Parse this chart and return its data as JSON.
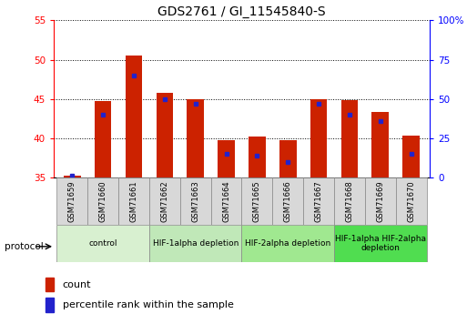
{
  "title": "GDS2761 / GI_11545840-S",
  "samples": [
    "GSM71659",
    "GSM71660",
    "GSM71661",
    "GSM71662",
    "GSM71663",
    "GSM71664",
    "GSM71665",
    "GSM71666",
    "GSM71667",
    "GSM71668",
    "GSM71669",
    "GSM71670"
  ],
  "count_values": [
    35.2,
    44.7,
    50.5,
    45.8,
    45.0,
    39.7,
    40.2,
    39.7,
    45.0,
    44.8,
    43.3,
    40.3
  ],
  "percentile_values": [
    1.0,
    40.0,
    65.0,
    50.0,
    47.0,
    15.0,
    14.0,
    10.0,
    47.0,
    40.0,
    36.0,
    15.0
  ],
  "bar_bottom": 35.0,
  "bar_color": "#cc2200",
  "percentile_color": "#2222cc",
  "ylim_left": [
    35,
    55
  ],
  "ylim_right": [
    0,
    100
  ],
  "yticks_left": [
    35,
    40,
    45,
    50,
    55
  ],
  "yticks_right": [
    0,
    25,
    50,
    75,
    100
  ],
  "ytick_labels_right": [
    "0",
    "25",
    "50",
    "75",
    "100%"
  ],
  "groups": [
    {
      "label": "control",
      "start": 0,
      "end": 3,
      "color": "#d8f0d0"
    },
    {
      "label": "HIF-1alpha depletion",
      "start": 3,
      "end": 6,
      "color": "#c0e8b8"
    },
    {
      "label": "HIF-2alpha depletion",
      "start": 6,
      "end": 9,
      "color": "#a0e890"
    },
    {
      "label": "HIF-1alpha HIF-2alpha\ndepletion",
      "start": 9,
      "end": 12,
      "color": "#50dd50"
    }
  ],
  "legend_count_label": "count",
  "legend_percentile_label": "percentile rank within the sample",
  "xlabel_protocol": "protocol"
}
